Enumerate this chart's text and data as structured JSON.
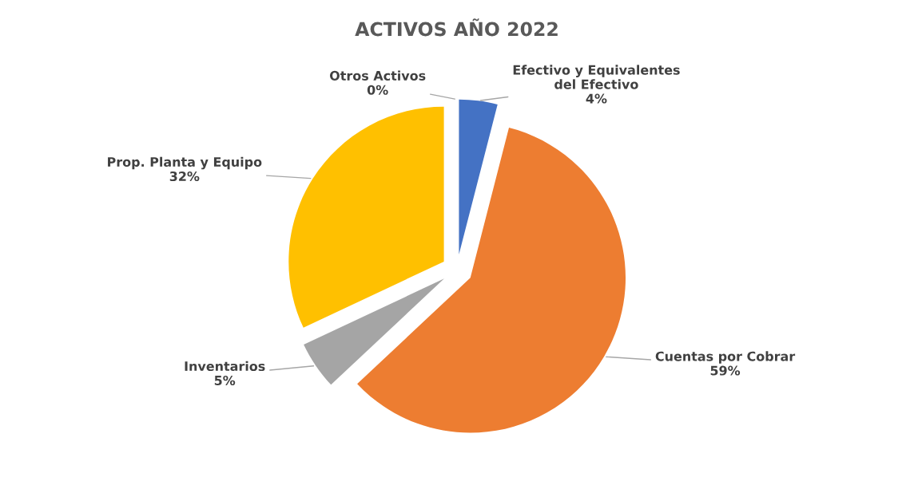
{
  "chart_data": {
    "type": "pie",
    "title": "ACTIVOS AÑO 2022",
    "categories": [
      "Efectivo y Equivalentes\ndel Efectivo",
      "Cuentas por Cobrar",
      "Inventarios",
      "Prop. Planta y Equipo",
      "Otros Activos"
    ],
    "values": [
      4,
      59,
      5,
      32,
      0
    ],
    "value_labels": [
      "4%",
      "59%",
      "5%",
      "32%",
      "0%"
    ],
    "colors": [
      "#4472c4",
      "#ed7d31",
      "#a5a5a5",
      "#ffc000",
      "#5b9bd5"
    ],
    "legend": false
  }
}
